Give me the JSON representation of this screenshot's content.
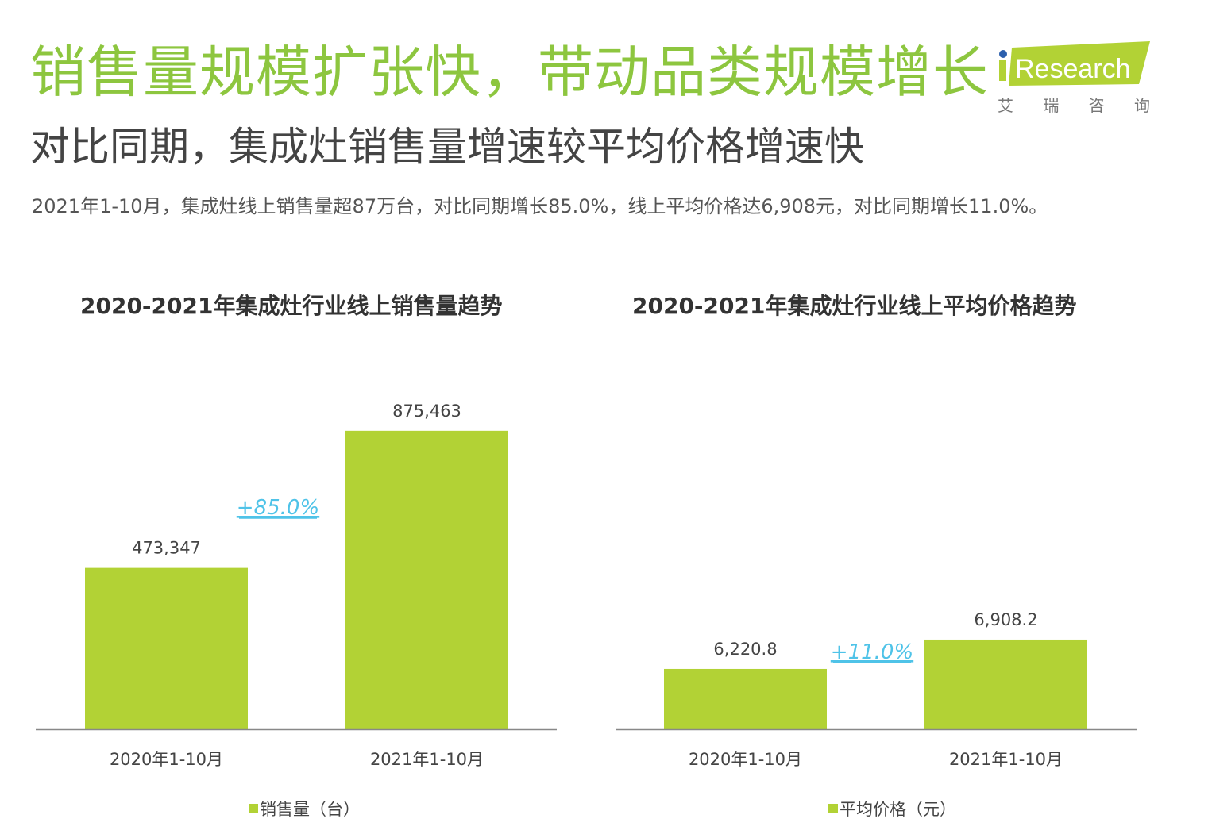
{
  "header": {
    "title": "销售量规模扩张快，带动品类规模增长",
    "subtitle": "对比同期，集成灶销售量增速较平均价格增速快",
    "description": "2021年1-10月，集成灶线上销售量超87万台，对比同期增长85.0%，线上平均价格达6,908元，对比同期增长11.0%。"
  },
  "logo": {
    "text": "iResearch",
    "cn": "艾 瑞 咨 询",
    "color": "#b2d235",
    "dot_color": "#2b5fad"
  },
  "colors": {
    "bar": "#b2d235",
    "growth": "#4fc3e8",
    "axis": "#888888",
    "text": "#444444"
  },
  "chart_data": [
    {
      "type": "bar",
      "title": "2020-2021年集成灶行业线上销售量趋势",
      "categories": [
        "2020年1-10月",
        "2021年1-10月"
      ],
      "series": [
        {
          "name": "销售量（台）",
          "values": [
            473347,
            875463
          ]
        }
      ],
      "data_labels": [
        "473,347",
        "875,463"
      ],
      "annotation": "+85.0%",
      "ylim": [
        0,
        1045000
      ],
      "grid": false,
      "legend": "bottom-center"
    },
    {
      "type": "bar",
      "title": "2020-2021年集成灶行业线上平均价格趋势",
      "categories": [
        "2020年1-10月",
        "2021年1-10月"
      ],
      "series": [
        {
          "name": "平均价格（元）",
          "values": [
            6220.8,
            6908.2
          ]
        }
      ],
      "data_labels": [
        "6,220.8",
        "6,908.2"
      ],
      "annotation": "+11.0%",
      "ylim": [
        4808,
        13150
      ],
      "grid": false,
      "legend": "bottom-center"
    }
  ]
}
